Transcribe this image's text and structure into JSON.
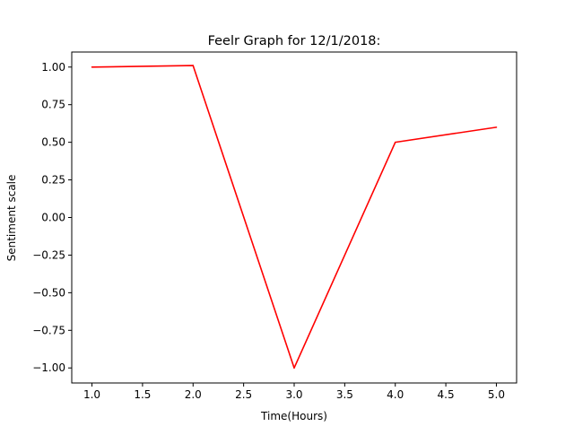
{
  "chart_data": {
    "type": "line",
    "title": "Feelr Graph for 12/1/2018:",
    "xlabel": "Time(Hours)",
    "ylabel": "Sentiment scale",
    "x": [
      1.0,
      2.0,
      3.0,
      4.0,
      5.0
    ],
    "series": [
      {
        "color": "#ff0000",
        "values": [
          1.0,
          1.01,
          -1.0,
          0.5,
          0.6
        ]
      }
    ],
    "xlim": [
      0.8,
      5.2
    ],
    "ylim": [
      -1.1,
      1.1
    ],
    "xticks": [
      1.0,
      1.5,
      2.0,
      2.5,
      3.0,
      3.5,
      4.0,
      4.5,
      5.0
    ],
    "xtick_labels": [
      "1.0",
      "1.5",
      "2.0",
      "2.5",
      "3.0",
      "3.5",
      "4.0",
      "4.5",
      "5.0"
    ],
    "yticks": [
      1.0,
      0.75,
      0.5,
      0.25,
      0.0,
      -0.25,
      -0.5,
      -0.75,
      -1.0
    ],
    "ytick_labels": [
      "1.00",
      "0.75",
      "0.50",
      "0.25",
      "0.00",
      "−0.25",
      "−0.50",
      "−0.75",
      "−1.00"
    ],
    "grid": false,
    "legend": false
  }
}
